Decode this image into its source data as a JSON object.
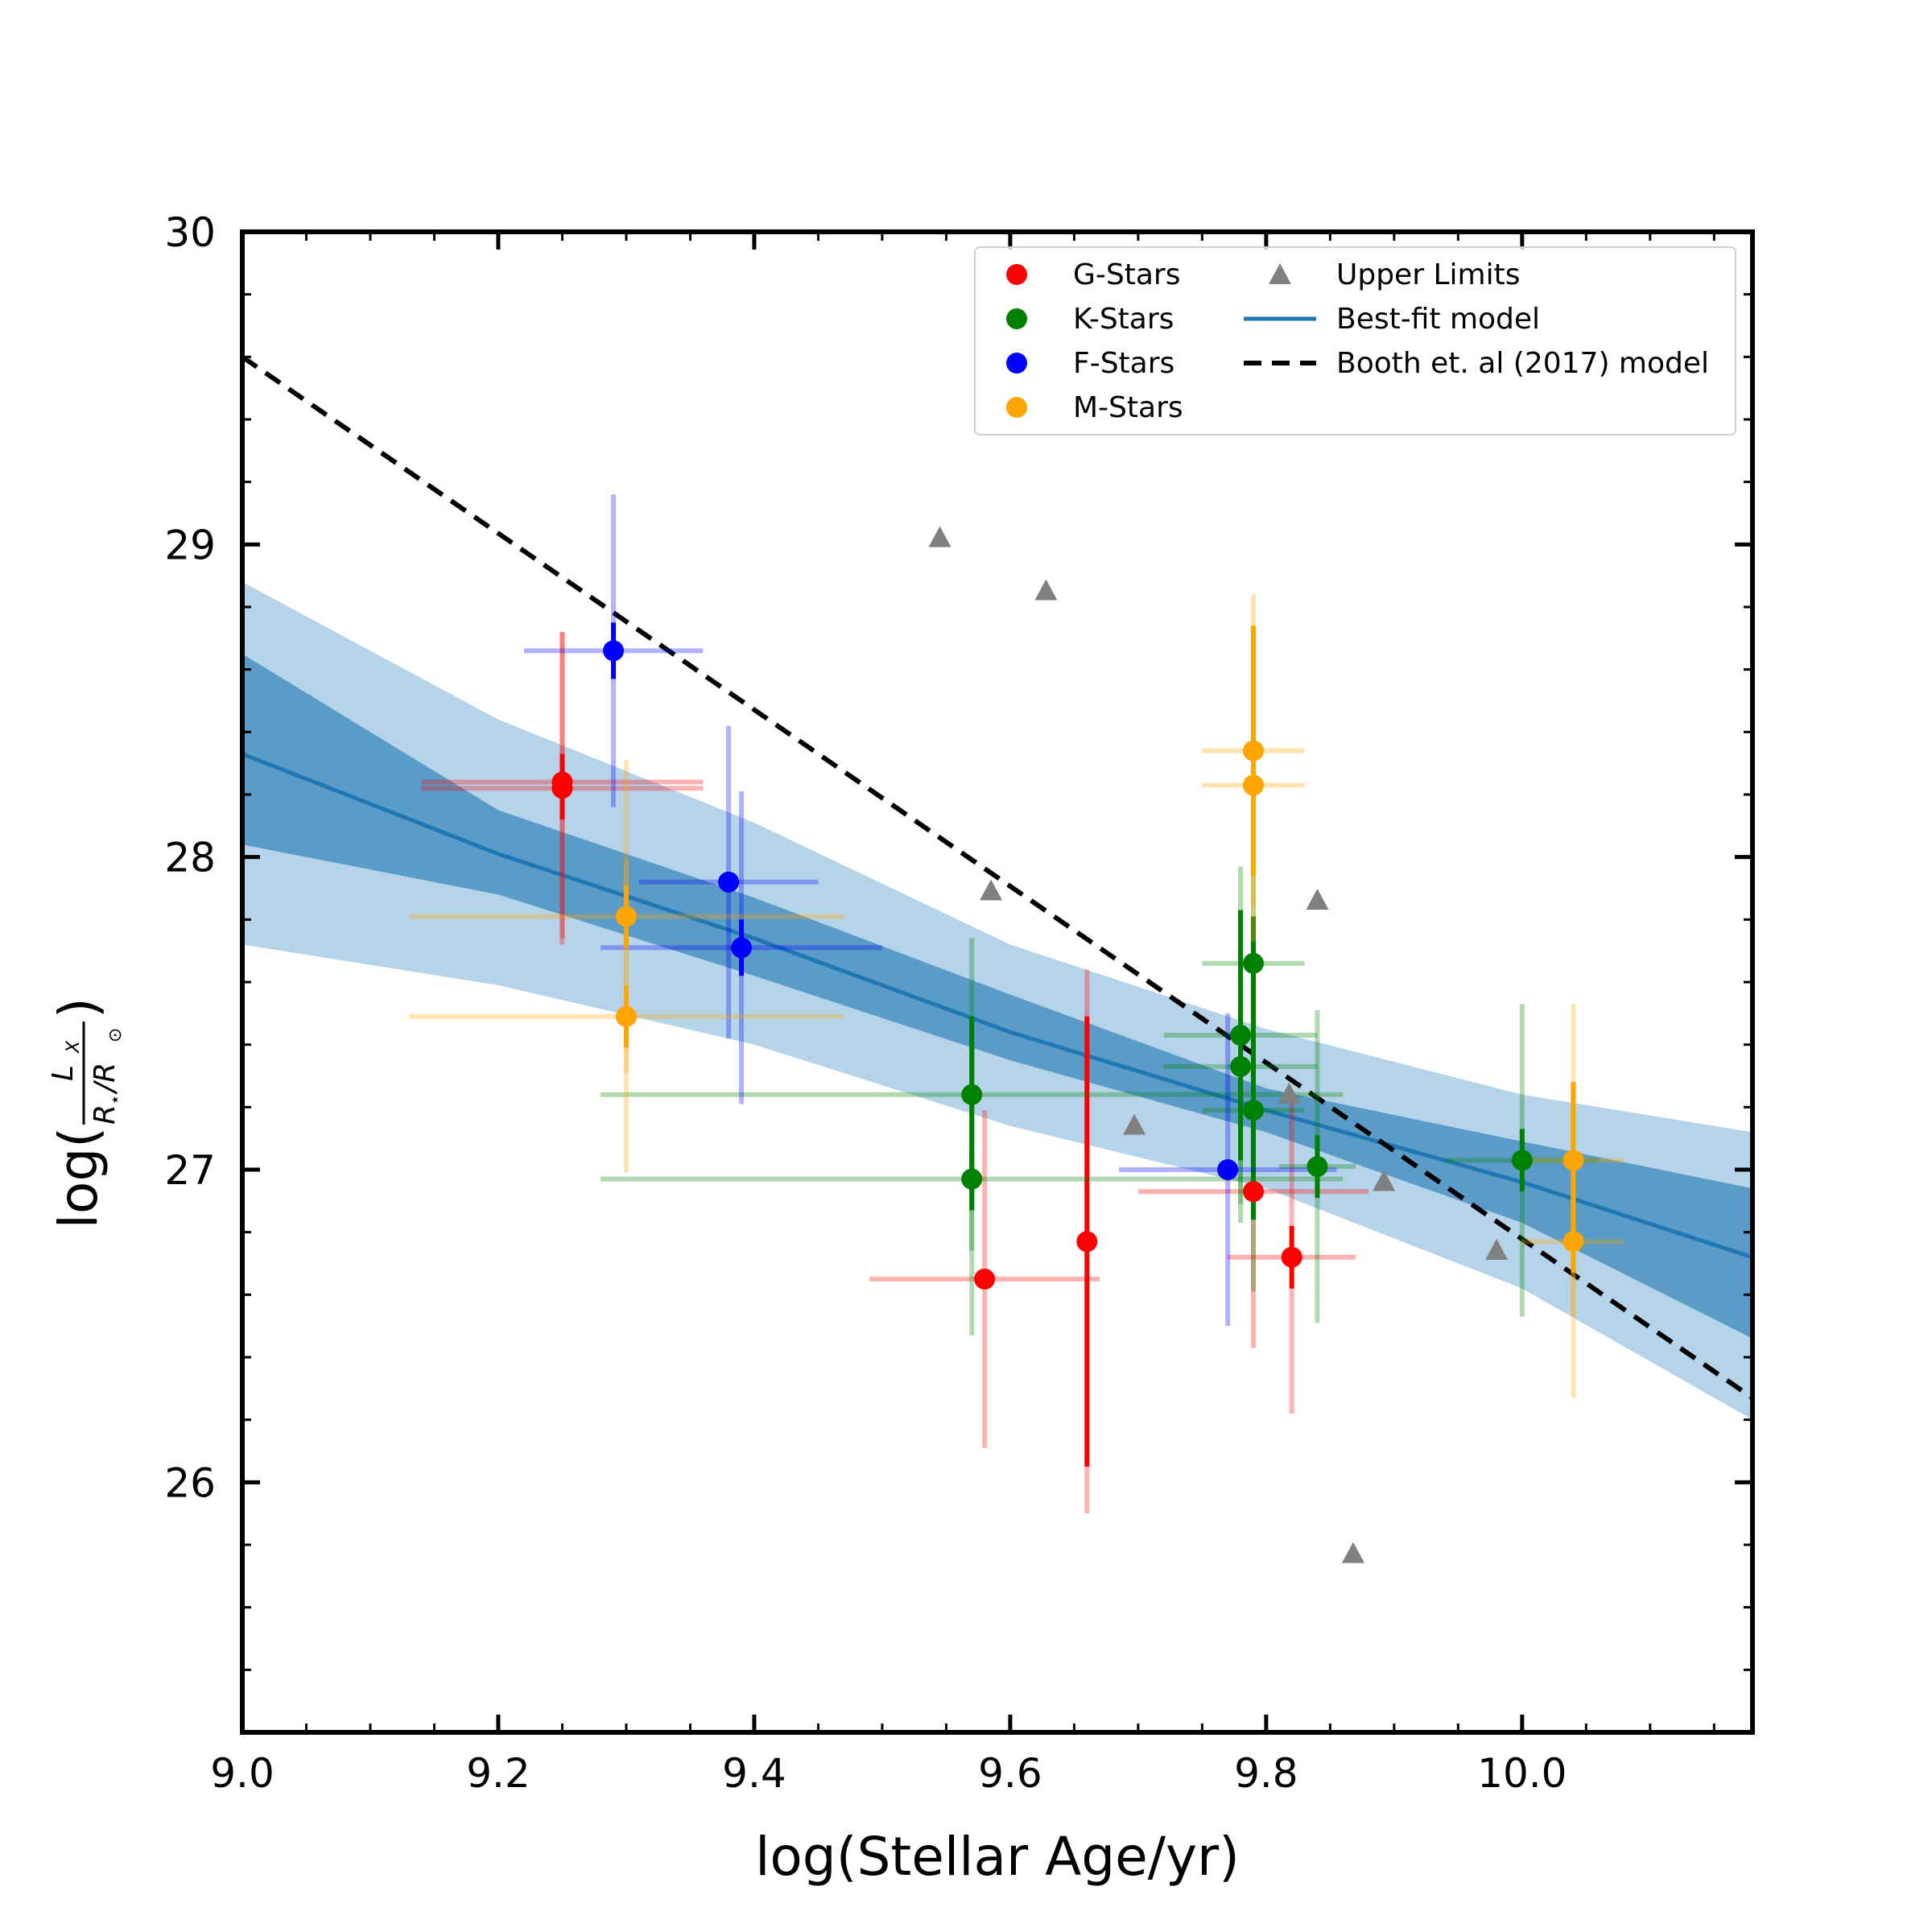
{
  "chart_data": {
    "type": "scatter",
    "xlabel": "log(Stellar Age/yr)",
    "ylabel": {
      "prefix": "log(",
      "numerator": "L",
      "numerator_sub": "X",
      "denominator": "R",
      "denominator_sub1": "⋆",
      "denominator_mid": "/R",
      "denominator_sub2": "⊙",
      "suffix": ")"
    },
    "xlim": [
      9.0,
      10.18
    ],
    "ylim": [
      25.2,
      30.0
    ],
    "xticks": [
      9.0,
      9.2,
      9.4,
      9.6,
      9.8,
      10.0
    ],
    "xtick_labels": [
      "9.0",
      "9.2",
      "9.4",
      "9.6",
      "9.8",
      "10.0"
    ],
    "yticks": [
      26,
      27,
      28,
      29,
      30
    ],
    "ytick_labels": [
      "26",
      "27",
      "28",
      "29",
      "30"
    ],
    "legend": {
      "position": "top-right",
      "entries": [
        {
          "label": "G-Stars",
          "color": "#ff0000",
          "kind": "dot"
        },
        {
          "label": "K-Stars",
          "color": "#008000",
          "kind": "dot"
        },
        {
          "label": "F-Stars",
          "color": "#0000ff",
          "kind": "dot"
        },
        {
          "label": "M-Stars",
          "color": "#ffa500",
          "kind": "dot"
        },
        {
          "label": "Upper Limits",
          "color": "#808080",
          "kind": "triangle"
        },
        {
          "label": "Best-fit model",
          "color": "#1f77b4",
          "kind": "line"
        },
        {
          "label": "Booth et. al (2017) model",
          "color": "#000000",
          "kind": "dashed"
        }
      ]
    },
    "booth_model": {
      "x": [
        9.0,
        10.18
      ],
      "y": [
        29.6,
        26.27
      ],
      "color": "#000000"
    },
    "best_fit": {
      "color": "#1f77b4",
      "x": [
        9.0,
        9.2,
        9.4,
        9.6,
        9.8,
        10.0,
        10.18
      ],
      "y": [
        28.33,
        28.01,
        27.74,
        27.44,
        27.19,
        26.96,
        26.72
      ],
      "inner_low": [
        28.04,
        27.88,
        27.62,
        27.35,
        27.12,
        26.83,
        26.46
      ],
      "inner_high": [
        28.65,
        28.15,
        27.87,
        27.56,
        27.26,
        27.09,
        26.94
      ],
      "outer_low": [
        27.72,
        27.59,
        27.4,
        27.14,
        26.94,
        26.62,
        26.2
      ],
      "outer_high": [
        28.88,
        28.44,
        28.11,
        27.72,
        27.45,
        27.24,
        27.12
      ],
      "inner_color": "#5a9bc8",
      "outer_color": "#b6d4e9"
    },
    "series": [
      {
        "name": "G-Stars",
        "color": "#ff0000",
        "points": [
          {
            "x": 9.25,
            "y": 28.24,
            "xerr": 0.11,
            "ylo": 0.5,
            "yhi": 0.48,
            "ylo2": 0.12,
            "yhi2": 0.09
          },
          {
            "x": 9.25,
            "y": 28.22,
            "xerr": 0.11,
            "ylo": 0.5,
            "yhi": 0.5
          },
          {
            "x": 9.58,
            "y": 26.65,
            "xerr": 0.09,
            "ylo": 0.54,
            "yhi": 0.54
          },
          {
            "x": 9.66,
            "y": 26.77,
            "xerr": 0.0,
            "ylo": 0.87,
            "yhi": 0.87,
            "ylo2": 0.72,
            "yhi2": 0.72
          },
          {
            "x": 9.79,
            "y": 26.93,
            "xerr": 0.09,
            "ylo": 0.5,
            "yhi": 0.5
          },
          {
            "x": 9.82,
            "y": 26.72,
            "xerr": 0.05,
            "ylo": 0.5,
            "yhi": 0.5,
            "ylo2": 0.1,
            "yhi2": 0.1
          }
        ]
      },
      {
        "name": "K-Stars",
        "color": "#008000",
        "points": [
          {
            "x": 9.57,
            "y": 27.24,
            "xerr": 0.0,
            "ylo": 0.5,
            "yhi": 0.5,
            "ylo2": 0.25,
            "yhi2": 0.25
          },
          {
            "x": 9.57,
            "y": 26.97,
            "xerr": 0.0,
            "ylo": 0.5,
            "yhi": 0.5,
            "ylo2": 0.1,
            "yhi2": 0.1
          },
          {
            "x": 9.78,
            "y": 27.43,
            "xerr": 0.06,
            "ylo": 0.54,
            "yhi": 0.54,
            "ylo2": 0.4,
            "yhi2": 0.4
          },
          {
            "x": 9.78,
            "y": 27.33,
            "xerr": 0.06,
            "ylo": 0.5,
            "yhi": 0.5,
            "ylo2": 0.2,
            "yhi2": 0.2
          },
          {
            "x": 9.79,
            "y": 27.66,
            "xerr": 0.04,
            "ylo": 0.5,
            "yhi": 0.5,
            "ylo2": 0.15,
            "yhi2": 0.15
          },
          {
            "x": 9.79,
            "y": 27.19,
            "xerr": 0.04,
            "ylo": 0.58,
            "yhi": 0.58,
            "ylo2": 0.35,
            "yhi2": 0.35
          },
          {
            "x": 9.84,
            "y": 27.01,
            "xerr": 0.03,
            "ylo": 0.5,
            "yhi": 0.5,
            "ylo2": 0.1,
            "yhi2": 0.1
          },
          {
            "x": 10.0,
            "y": 27.03,
            "xerr": 0.06,
            "ylo": 0.5,
            "yhi": 0.5,
            "ylo2": 0.1,
            "yhi2": 0.1
          }
        ]
      },
      {
        "name": "K-Stars wide",
        "color": "#008000",
        "points": [
          {
            "x": 9.57,
            "y": 27.24,
            "xlo": 0.29,
            "xhi": 0.29,
            "ylo": 0,
            "yhi": 0
          },
          {
            "x": 9.57,
            "y": 26.97,
            "xlo": 0.29,
            "xhi": 0.29,
            "ylo": 0,
            "yhi": 0
          }
        ]
      },
      {
        "name": "F-Stars",
        "color": "#0000ff",
        "points": [
          {
            "x": 9.29,
            "y": 28.66,
            "xerr": 0.07,
            "ylo": 0.5,
            "yhi": 0.5,
            "ylo2": 0.09,
            "yhi2": 0.09
          },
          {
            "x": 9.38,
            "y": 27.92,
            "xerr": 0.07,
            "ylo": 0.5,
            "yhi": 0.5
          },
          {
            "x": 9.39,
            "y": 27.71,
            "xerr": 0.11,
            "ylo": 0.5,
            "yhi": 0.5,
            "ylo2": 0.09,
            "yhi2": 0.09
          },
          {
            "x": 9.77,
            "y": 27.0,
            "xerr": 0.085,
            "ylo": 0.5,
            "yhi": 0.5
          }
        ]
      },
      {
        "name": "M-Stars",
        "color": "#ffa500",
        "points": [
          {
            "x": 9.3,
            "y": 27.81,
            "xerr": 0.17,
            "ylo": 0.5,
            "yhi": 0.5,
            "ylo2": 0.1,
            "yhi2": 0.1
          },
          {
            "x": 9.3,
            "y": 27.49,
            "xerr": 0.17,
            "ylo": 0.5,
            "yhi": 0.5,
            "ylo2": 0.1,
            "yhi2": 0.1
          },
          {
            "x": 9.79,
            "y": 28.34,
            "xerr": 0.04,
            "ylo": 0.5,
            "yhi": 0.5,
            "ylo2": 0.4,
            "yhi2": 0.4
          },
          {
            "x": 9.79,
            "y": 28.23,
            "xerr": 0.04,
            "ylo": 0.5,
            "yhi": 0.5,
            "ylo2": 0.1,
            "yhi2": 0.1
          },
          {
            "x": 10.04,
            "y": 27.03,
            "xerr": 0.04,
            "ylo": 0.5,
            "yhi": 0.5,
            "ylo2": 0.25,
            "yhi2": 0.25
          },
          {
            "x": 10.04,
            "y": 26.77,
            "xerr": 0.04,
            "ylo": 0.5,
            "yhi": 0.5,
            "ylo2": 0.1,
            "yhi2": 0.1
          }
        ]
      }
    ],
    "upper_limits": {
      "name": "Upper Limits",
      "color": "#808080",
      "points": [
        {
          "x": 9.545,
          "y": 29.02
        },
        {
          "x": 9.628,
          "y": 28.85
        },
        {
          "x": 9.585,
          "y": 27.89
        },
        {
          "x": 9.697,
          "y": 27.14
        },
        {
          "x": 9.818,
          "y": 27.24
        },
        {
          "x": 9.84,
          "y": 27.86
        },
        {
          "x": 9.892,
          "y": 26.96
        },
        {
          "x": 9.98,
          "y": 26.74
        },
        {
          "x": 9.868,
          "y": 25.77
        }
      ]
    }
  }
}
